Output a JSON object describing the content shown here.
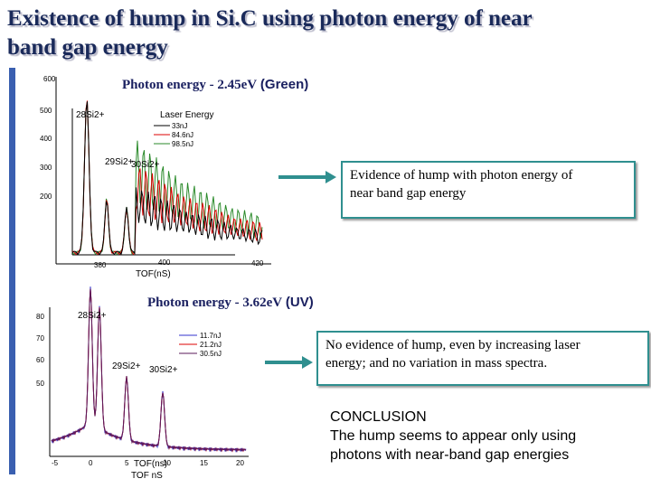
{
  "title": [
    "Existence of hump in Si.C using photon energy of near",
    "band gap energy"
  ],
  "sections": [
    {
      "label": "Photon energy - 2.45eV",
      "label_note": "(Green)",
      "finding": [
        "Evidence of  hump with photon energy of",
        "near band gap energy"
      ]
    },
    {
      "label": "Photon energy - 3.62eV",
      "label_note": "(UV)",
      "finding": [
        "No evidence of hump, even by increasing laser",
        "energy; and no variation in mass spectra."
      ]
    }
  ],
  "conclusion": {
    "heading": "CONCLUSION",
    "lines": [
      "The hump seems to appear only using",
      "photons with near-band gap energies"
    ]
  },
  "figures": [
    {
      "yticks": [
        "600",
        "500",
        "400",
        "300",
        "200"
      ],
      "xticks": [
        "380",
        "400",
        "420"
      ],
      "legend_title": "Laser Energy",
      "legend": [
        "33nJ",
        "84.6nJ",
        "98.5nJ"
      ],
      "peaks": [
        "28Si2+",
        "29Si2+",
        "30Si2+"
      ],
      "xlabel": "TOF(nS)"
    },
    {
      "yticks": [
        "80",
        "70",
        "60",
        "50"
      ],
      "xticks": [
        "-5",
        "0",
        "5",
        "10",
        "15",
        "20"
      ],
      "legend": [
        "11.7nJ",
        "21.2nJ",
        "30.5nJ"
      ],
      "peaks": [
        "28Si2+",
        "29Si2+",
        "30Si2+"
      ],
      "xlabel": "TOF(ns)",
      "xlabel2": "TOF nS"
    }
  ]
}
